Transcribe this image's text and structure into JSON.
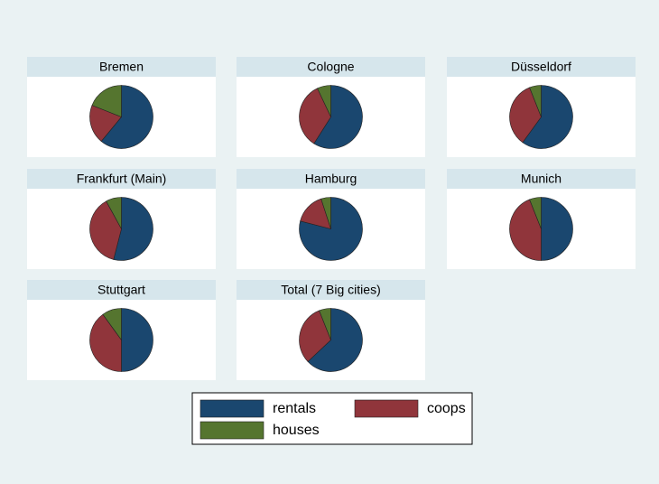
{
  "chart_data": [
    {
      "type": "pie",
      "title": "Bremen",
      "categories": [
        "rentals",
        "coops",
        "houses"
      ],
      "colors": [
        "#1a476f",
        "#90353b",
        "#55752f"
      ],
      "values": [
        61,
        20,
        19
      ]
    },
    {
      "type": "pie",
      "title": "Cologne",
      "categories": [
        "rentals",
        "coops",
        "houses"
      ],
      "colors": [
        "#1a476f",
        "#90353b",
        "#55752f"
      ],
      "values": [
        59,
        34,
        7
      ]
    },
    {
      "type": "pie",
      "title": "Düsseldorf",
      "categories": [
        "rentals",
        "coops",
        "houses"
      ],
      "colors": [
        "#1a476f",
        "#90353b",
        "#55752f"
      ],
      "values": [
        60,
        34,
        6
      ]
    },
    {
      "type": "pie",
      "title": "Frankfurt (Main)",
      "categories": [
        "rentals",
        "coops",
        "houses"
      ],
      "colors": [
        "#1a476f",
        "#90353b",
        "#55752f"
      ],
      "values": [
        54,
        38,
        8
      ]
    },
    {
      "type": "pie",
      "title": "Hamburg",
      "categories": [
        "rentals",
        "coops",
        "houses"
      ],
      "colors": [
        "#1a476f",
        "#90353b",
        "#55752f"
      ],
      "values": [
        79,
        16,
        5
      ]
    },
    {
      "type": "pie",
      "title": "Munich",
      "categories": [
        "rentals",
        "coops",
        "houses"
      ],
      "colors": [
        "#1a476f",
        "#90353b",
        "#55752f"
      ],
      "values": [
        50,
        44,
        6
      ]
    },
    {
      "type": "pie",
      "title": "Stuttgart",
      "categories": [
        "rentals",
        "coops",
        "houses"
      ],
      "colors": [
        "#1a476f",
        "#90353b",
        "#55752f"
      ],
      "values": [
        50,
        40,
        10
      ]
    },
    {
      "type": "pie",
      "title": "Total (7 Big cities)",
      "categories": [
        "rentals",
        "coops",
        "houses"
      ],
      "colors": [
        "#1a476f",
        "#90353b",
        "#55752f"
      ],
      "values": [
        63,
        31,
        6
      ]
    }
  ]
}
